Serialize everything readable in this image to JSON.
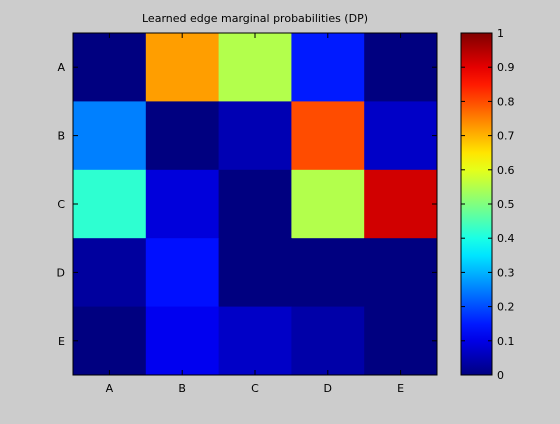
{
  "chart_data": {
    "type": "heatmap",
    "title": "Learned edge marginal probabilities (DP)",
    "xlabel": "",
    "ylabel": "",
    "x_categories": [
      "A",
      "B",
      "C",
      "D",
      "E"
    ],
    "y_categories": [
      "A",
      "B",
      "C",
      "D",
      "E"
    ],
    "values": [
      [
        0.0,
        0.72,
        0.55,
        0.15,
        0.0
      ],
      [
        0.25,
        0.0,
        0.05,
        0.8,
        0.07
      ],
      [
        0.42,
        0.09,
        0.0,
        0.55,
        0.92
      ],
      [
        0.03,
        0.14,
        0.0,
        0.0,
        0.0
      ],
      [
        0.0,
        0.11,
        0.07,
        0.04,
        0.0
      ]
    ],
    "colorbar": {
      "range": [
        0,
        1
      ],
      "ticks": [
        0,
        0.1,
        0.2,
        0.3,
        0.4,
        0.5,
        0.6,
        0.7,
        0.8,
        0.9,
        1
      ],
      "tick_labels": [
        "0",
        "0.1",
        "0.2",
        "0.3",
        "0.4",
        "0.5",
        "0.6",
        "0.7",
        "0.8",
        "0.9",
        "1"
      ],
      "colormap": "jet"
    },
    "grid": false,
    "colors": {
      "figure_background": "#cccccc",
      "axis_line": "#000000"
    }
  }
}
